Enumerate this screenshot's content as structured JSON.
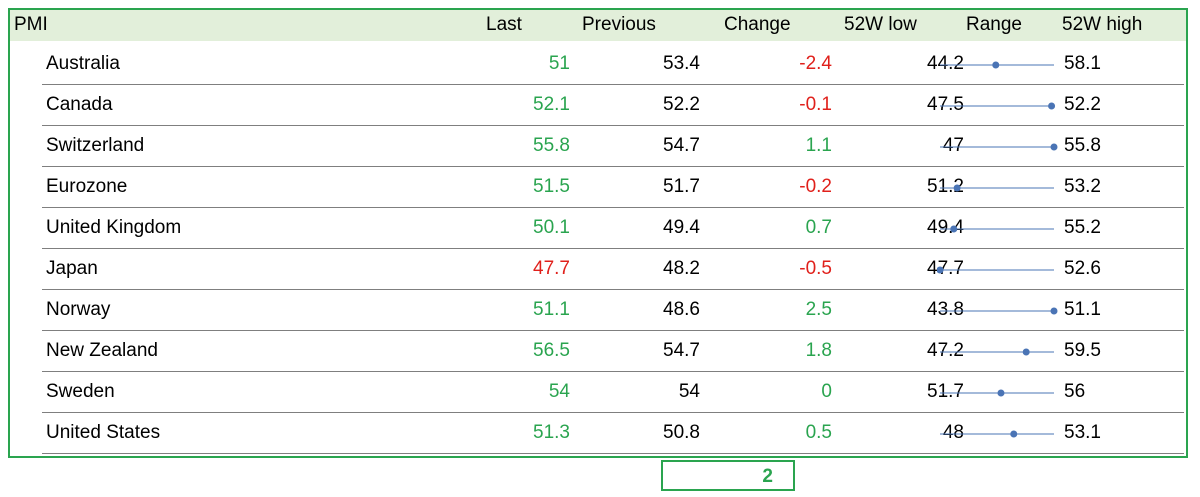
{
  "header": {
    "pmi": "PMI",
    "last": "Last",
    "previous": "Previous",
    "change": "Change",
    "low": "52W low",
    "range": "Range",
    "high": "52W high"
  },
  "colors": {
    "positive": "#2aa44f",
    "negative": "#e0201b",
    "range_marker": "#4a74b5",
    "border": "#2aa44f",
    "header_bg": "#e2efda"
  },
  "rows": [
    {
      "name": "Australia",
      "last": "51",
      "last_trend": "pos",
      "previous": "53.4",
      "change": "-2.4",
      "change_trend": "neg",
      "low": "44.2",
      "high": "58.1",
      "value": 51,
      "min": 44.2,
      "max": 58.1
    },
    {
      "name": "Canada",
      "last": "52.1",
      "last_trend": "pos",
      "previous": "52.2",
      "change": "-0.1",
      "change_trend": "neg",
      "low": "47.5",
      "high": "52.2",
      "value": 52.1,
      "min": 47.5,
      "max": 52.2
    },
    {
      "name": "Switzerland",
      "last": "55.8",
      "last_trend": "pos",
      "previous": "54.7",
      "change": "1.1",
      "change_trend": "pos",
      "low": "47",
      "high": "55.8",
      "value": 55.8,
      "min": 47,
      "max": 55.8
    },
    {
      "name": "Eurozone",
      "last": "51.5",
      "last_trend": "pos",
      "previous": "51.7",
      "change": "-0.2",
      "change_trend": "neg",
      "low": "51.2",
      "high": "53.2",
      "value": 51.5,
      "min": 51.2,
      "max": 53.2
    },
    {
      "name": "United Kingdom",
      "last": "50.1",
      "last_trend": "pos",
      "previous": "49.4",
      "change": "0.7",
      "change_trend": "pos",
      "low": "49.4",
      "high": "55.2",
      "value": 50.1,
      "min": 49.4,
      "max": 55.2
    },
    {
      "name": "Japan",
      "last": "47.7",
      "last_trend": "neg",
      "previous": "48.2",
      "change": "-0.5",
      "change_trend": "neg",
      "low": "47.7",
      "high": "52.6",
      "value": 47.7,
      "min": 47.7,
      "max": 52.6
    },
    {
      "name": "Norway",
      "last": "51.1",
      "last_trend": "pos",
      "previous": "48.6",
      "change": "2.5",
      "change_trend": "pos",
      "low": "43.8",
      "high": "51.1",
      "value": 51.1,
      "min": 43.8,
      "max": 51.1
    },
    {
      "name": "New Zealand",
      "last": "56.5",
      "last_trend": "pos",
      "previous": "54.7",
      "change": "1.8",
      "change_trend": "pos",
      "low": "47.2",
      "high": "59.5",
      "value": 56.5,
      "min": 47.2,
      "max": 59.5
    },
    {
      "name": "Sweden",
      "last": "54",
      "last_trend": "pos",
      "previous": "54",
      "change": "0",
      "change_trend": "pos",
      "low": "51.7",
      "high": "56",
      "value": 54,
      "min": 51.7,
      "max": 56
    },
    {
      "name": "United States",
      "last": "51.3",
      "last_trend": "pos",
      "previous": "50.8",
      "change": "0.5",
      "change_trend": "pos",
      "low": "48",
      "high": "53.1",
      "value": 51.3,
      "min": 48,
      "max": 53.1
    }
  ],
  "footer": {
    "total": "2"
  }
}
